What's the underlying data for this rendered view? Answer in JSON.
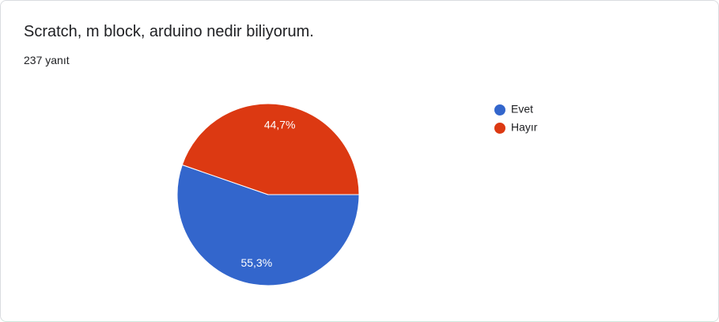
{
  "chart_data": {
    "type": "pie",
    "title": "Scratch, m block, arduino nedir biliyorum.",
    "subtitle": "237 yanıt",
    "categories": [
      "Evet",
      "Hayır"
    ],
    "values": [
      55.3,
      44.7
    ],
    "value_labels": [
      "55,3%",
      "44,7%"
    ],
    "colors": [
      "#3366cc",
      "#dc3912"
    ],
    "legend": "right"
  }
}
